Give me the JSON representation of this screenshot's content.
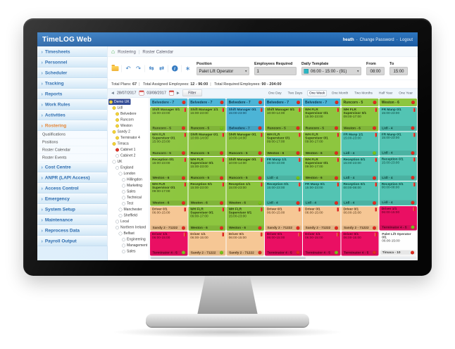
{
  "app": {
    "title": "TimeLOG Web"
  },
  "topbar": {
    "user": "heath",
    "change_password": "Change Password",
    "logout": "Logout"
  },
  "breadcrumb": {
    "home_glyph": "⌂",
    "items": [
      {
        "label": "Rostering"
      },
      {
        "label": "Roster Calendar"
      }
    ]
  },
  "sidebar": {
    "items": [
      {
        "label": "Timesheets",
        "kind": "nav"
      },
      {
        "label": "Personnel",
        "kind": "nav"
      },
      {
        "label": "Scheduler",
        "kind": "nav"
      },
      {
        "label": "Tracking",
        "kind": "nav"
      },
      {
        "label": "Reports",
        "kind": "nav"
      },
      {
        "label": "Work Rules",
        "kind": "nav"
      },
      {
        "label": "Activities",
        "kind": "nav"
      },
      {
        "label": "Rostering",
        "kind": "nav",
        "active": "1"
      },
      {
        "label": "Qualifications",
        "kind": "sub"
      },
      {
        "label": "Positions",
        "kind": "sub"
      },
      {
        "label": "Roster Calendar",
        "kind": "sub"
      },
      {
        "label": "Roster Events",
        "kind": "sub"
      },
      {
        "label": "Cost Centre",
        "kind": "nav"
      },
      {
        "label": "ANPR (LAPI Access)",
        "kind": "nav"
      },
      {
        "label": "Access Control",
        "kind": "nav"
      },
      {
        "label": "Emergency",
        "kind": "nav"
      },
      {
        "label": "System Setup",
        "kind": "nav"
      },
      {
        "label": "Maintenance",
        "kind": "nav"
      },
      {
        "label": "Reprocess Data",
        "kind": "nav"
      },
      {
        "label": "Payroll Output",
        "kind": "nav"
      }
    ]
  },
  "toolbar": {
    "icons": [
      {
        "name": "undo-arrow-icon",
        "glyph": "↶"
      },
      {
        "name": "redo-arrow-icon",
        "glyph": "↷"
      },
      {
        "name": "copy-roster-back-icon",
        "glyph": "⇆"
      },
      {
        "name": "copy-roster-forward-icon",
        "glyph": "⇄"
      }
    ],
    "info_glyph": "i",
    "settings_glyph": "∗",
    "position": {
      "label": "Position",
      "value": "Palet Lift Operator"
    },
    "employees": {
      "label": "Employees Required",
      "value": "1"
    },
    "template": {
      "label": "Daily Template",
      "value": "06:00 - 15:00 - (91)"
    },
    "from": {
      "label": "From",
      "value": "08:00"
    },
    "to": {
      "label": "To",
      "value": "15:00"
    }
  },
  "status": {
    "segments": [
      {
        "label": "Total Plans:",
        "value": "67"
      },
      {
        "label": "Total Assigned Employees:",
        "value": "12 - 96:00"
      },
      {
        "label": "Total Required Employees:",
        "value": "90 - 204:00"
      }
    ]
  },
  "datenav": {
    "prev_glyph": "◀",
    "next_glyph": "▶",
    "start": "28/07/2017",
    "end": "03/08/2017",
    "filter": "Filter"
  },
  "views": {
    "options": [
      {
        "label": "One Day"
      },
      {
        "label": "Two Days"
      },
      {
        "label": "One Week",
        "sel": "1"
      },
      {
        "label": "One Month"
      },
      {
        "label": "Two Months"
      },
      {
        "label": "Half Year"
      },
      {
        "label": "One Year"
      }
    ]
  },
  "tree": {
    "nodes": [
      {
        "label": "Demo UK",
        "dot": "yellow",
        "ind": "0",
        "sel": "1"
      },
      {
        "label": "Lidl",
        "dot": "yellow",
        "ind": "1"
      },
      {
        "label": "Belvedere",
        "dot": "yellow",
        "ind": "2"
      },
      {
        "label": "Runcorn",
        "dot": "yellow",
        "ind": "2"
      },
      {
        "label": "Weston",
        "dot": "yellow",
        "ind": "2"
      },
      {
        "label": "Sandy 2",
        "dot": "yellow",
        "ind": "1"
      },
      {
        "label": "Terminator 4",
        "dot": "yellow",
        "ind": "2"
      },
      {
        "label": "Timaca",
        "dot": "yellow",
        "ind": "1"
      },
      {
        "label": "Cabinet 1",
        "dot": "red",
        "ind": "2"
      },
      {
        "label": "Cabinet 2",
        "dot": "empty",
        "ind": "2"
      },
      {
        "label": "UK",
        "dot": "empty",
        "ind": "1"
      },
      {
        "label": "England",
        "dot": "empty",
        "ind": "2"
      },
      {
        "label": "London",
        "dot": "empty",
        "ind": "3"
      },
      {
        "label": "Hillingdon",
        "dot": "empty",
        "ind": "4"
      },
      {
        "label": "Marketing",
        "dot": "empty",
        "ind": "4"
      },
      {
        "label": "Sales",
        "dot": "empty",
        "ind": "4"
      },
      {
        "label": "Technical",
        "dot": "empty",
        "ind": "4"
      },
      {
        "label": "Test",
        "dot": "empty",
        "ind": "4"
      },
      {
        "label": "Manchester",
        "dot": "empty",
        "ind": "3"
      },
      {
        "label": "Sheffield",
        "dot": "empty",
        "ind": "3"
      },
      {
        "label": "Local",
        "dot": "empty",
        "ind": "2"
      },
      {
        "label": "Northern Ireland",
        "dot": "empty",
        "ind": "2"
      },
      {
        "label": "Belfast",
        "dot": "empty",
        "ind": "3"
      },
      {
        "label": "Engineering",
        "dot": "empty",
        "ind": "4"
      },
      {
        "label": "Management",
        "dot": "empty",
        "ind": "4"
      },
      {
        "label": "Sales",
        "dot": "empty",
        "ind": "4"
      }
    ]
  },
  "grid": {
    "columns": [
      {
        "header": {
          "label": "Belvedere - 7",
          "cls": "teal",
          "dot": "red"
        },
        "cells": [
          {
            "title": "Shift Manager 0/1",
            "time": "15:00-23:00",
            "site": "Runcorn - 5",
            "cls": "green",
            "dot": "red"
          },
          {
            "title": "WH FLR Supervisor 0/1",
            "time": "15:00-23:00",
            "site": "Runcorn - 5",
            "cls": "green",
            "dot": "red"
          },
          {
            "title": "Reception 0/1",
            "time": "15:00-23:00",
            "site": "Weston - 6",
            "cls": "green",
            "dot": "red"
          },
          {
            "title": "WH FLR Supervisor 0/1",
            "time": "09:00-17:00",
            "site": "Weston - 6",
            "cls": "green",
            "dot": "red"
          },
          {
            "title": "Driver 0/1",
            "time": "06:00-15:00",
            "site": "Sandy 2 - 71222",
            "cls": "peach",
            "dot": "red"
          },
          {
            "title": "Driver 1/1",
            "time": "06:00-15:00",
            "site": "Terminator 4 - 5",
            "cls": "magenta",
            "dot": "green"
          }
        ]
      },
      {
        "header": {
          "label": "Belvedere - 7",
          "cls": "teal",
          "dot": "red"
        },
        "cells": [
          {
            "title": "Shift Manager 1/1",
            "time": "15:00-23:00",
            "site": "Runcorn - 5",
            "cls": "green",
            "dot": "green"
          },
          {
            "title": "Shift Manager 0/1",
            "time": "10:00-14:00",
            "site": "Runcorn - 5",
            "cls": "green",
            "dot": "red"
          },
          {
            "title": "WH FLR Supervisor 0/1",
            "time": "15:00-23:00",
            "site": "Runcorn - 5",
            "cls": "green",
            "dot": "red"
          },
          {
            "title": "Reception 0/1",
            "time": "15:00-23:00",
            "site": "Weston - 6",
            "cls": "green",
            "dot": "red"
          },
          {
            "title": "WH FLR Supervisor 0/1",
            "time": "09:00-17:00",
            "site": "Weston - 6",
            "cls": "green",
            "dot": "red"
          },
          {
            "title": "Driver 1/1",
            "time": "06:00-15:00",
            "site": "Sandy 2 - 71222",
            "cls": "peach",
            "dot": "green"
          }
        ]
      },
      {
        "header": {
          "label": "Belvedere - 7",
          "cls": "teal",
          "dot": "red"
        },
        "cells": [
          {
            "title": "Shift Manager 0/1",
            "time": "15:00-23:00",
            "site": "Belvedere - 7",
            "cls": "blue",
            "dot": "red"
          },
          {
            "title": "Shift Manager 0/1",
            "time": "10:00-14:00",
            "site": "Runcorn - 5",
            "cls": "green",
            "dot": "red"
          },
          {
            "title": "Shift Manager 0/1",
            "time": "10:00-14:00",
            "site": "Runcorn - 5",
            "cls": "green",
            "dot": "red"
          },
          {
            "title": "Reception 1/1",
            "time": "15:00-23:00",
            "site": "Weston - 6",
            "cls": "green",
            "dot": "green"
          },
          {
            "title": "WH FLR Supervisor 0/1",
            "time": "15:00-23:00",
            "site": "Weston - 6",
            "cls": "green",
            "dot": "red"
          },
          {
            "title": "Driver 0/1",
            "time": "06:00-15:00",
            "site": "Sandy 2 - 71222",
            "cls": "peach",
            "dot": "red"
          }
        ]
      },
      {
        "header": {
          "label": "Belvedere - 7",
          "cls": "teal",
          "dot": "red"
        },
        "cells": [
          {
            "title": "Shift Manager 0/1",
            "time": "10:00-14:00",
            "site": "Runcorn - 5",
            "cls": "green",
            "dot": "red"
          },
          {
            "title": "WH FLR Supervisor 0/1",
            "time": "09:00-17:00",
            "site": "Weston - 6",
            "cls": "green",
            "dot": "red"
          },
          {
            "title": "FR Manp 1/1",
            "time": "15:00-23:00",
            "site": "Lidl - 4",
            "cls": "teal",
            "dot": "green"
          },
          {
            "title": "Reception 0/1",
            "time": "15:00-23:00",
            "site": "Lidl - 4",
            "cls": "teal",
            "dot": "red"
          },
          {
            "title": "Driver 0/1",
            "time": "06:00-15:00",
            "site": "Sandy 2 - 71222",
            "cls": "peach",
            "dot": "red"
          },
          {
            "title": "Driver 0/1",
            "time": "06:00-15:00",
            "site": "Terminator 4 - 5",
            "cls": "magenta",
            "dot": "red"
          }
        ]
      },
      {
        "header": {
          "label": "Belvedere - 7",
          "cls": "teal",
          "dot": "red"
        },
        "cells": [
          {
            "title": "WH FLR Supervisor 0/1",
            "time": "15:00-23:00",
            "site": "Runcorn - 5",
            "cls": "green",
            "dot": "red"
          },
          {
            "title": "WH FLR Supervisor 0/1",
            "time": "09:00-17:00",
            "site": "Weston - 6",
            "cls": "green",
            "dot": "red"
          },
          {
            "title": "WH FLR Supervisor 0/1",
            "time": "09:00-17:00",
            "site": "Weston - 6",
            "cls": "green",
            "dot": "red"
          },
          {
            "title": "FR Manp 0/1",
            "time": "15:00-23:00",
            "site": "Lidl - 4",
            "cls": "teal",
            "dot": "red"
          },
          {
            "title": "Driver 0/1",
            "time": "06:00-15:00",
            "site": "Sandy 2 - 71222",
            "cls": "peach",
            "dot": "red"
          },
          {
            "title": "Driver 1/1",
            "time": "06:00-15:00",
            "site": "Terminator 4 - 5",
            "cls": "magenta",
            "dot": "green"
          }
        ]
      },
      {
        "header": {
          "label": "Runcorn - 5",
          "cls": "green",
          "dot": "red"
        },
        "cells": [
          {
            "title": "WH FLR Supervisor 0/1",
            "time": "09:00-17:00",
            "site": "Weston - 6",
            "cls": "green",
            "dot": "red"
          },
          {
            "title": "FR Manp 1/1",
            "time": "15:00-23:00",
            "site": "Lidl - 4",
            "cls": "teal",
            "dot": "green"
          },
          {
            "title": "Reception 0/1",
            "time": "15:00-23:00",
            "site": "Lidl - 4",
            "cls": "teal",
            "dot": "red"
          },
          {
            "title": "Reception 0/1",
            "time": "00:00-08:00",
            "site": "Lidl - 4",
            "cls": "teal",
            "dot": "red"
          },
          {
            "title": "Driver 0/1",
            "time": "06:00-15:00",
            "site": "Sandy 2 - 71222",
            "cls": "peach",
            "dot": "red"
          },
          {
            "title": "Driver 0/1",
            "time": "06:00-15:00",
            "site": "Terminator 4 - 5",
            "cls": "magenta",
            "dot": "red"
          }
        ]
      },
      {
        "header": {
          "label": "Weston - 6",
          "cls": "green",
          "dot": "red"
        },
        "cells": [
          {
            "title": "FR Manp 0/1",
            "time": "15:00-23:00",
            "site": "Lidl - 4",
            "cls": "teal",
            "dot": "red"
          },
          {
            "title": "FR Manp 0/1",
            "time": "15:00-23:00",
            "site": "Lidl - 4",
            "cls": "teal",
            "dot": "red"
          },
          {
            "title": "Reception 0/1",
            "time": "15:00-23:00",
            "site": "Lidl - 4",
            "cls": "teal",
            "dot": "red"
          },
          {
            "title": "Reception 0/1",
            "time": "00:00-08:00",
            "site": "Lidl - 4",
            "cls": "teal",
            "dot": "red"
          },
          {
            "title": "Driver 1/1",
            "time": "06:00-15:00",
            "site": "Terminator 4 - 5",
            "cls": "magenta",
            "dot": "green"
          },
          {
            "title": "Palet Lift Operator 0/1",
            "time": "06:00-15:00",
            "site": "Timaca - 10",
            "cls": "white",
            "dot": "red",
            "flag": "0"
          }
        ]
      }
    ]
  },
  "colors": {
    "topbar_blue": "#1b5aa0",
    "sidebar_link_blue": "#1a5fa8",
    "active_orange": "#e4791f",
    "site_header_teal": "#4cb4d6",
    "cell_green": "#8dc63f",
    "cell_teal": "#53c4b3",
    "cell_peach": "#f6c795",
    "cell_magenta": "#ea0f63",
    "dot_red": "#e02b20",
    "dot_green": "#76c219",
    "tree_yellow": "#f2d02c",
    "tree_selected_navy": "#27418f"
  }
}
